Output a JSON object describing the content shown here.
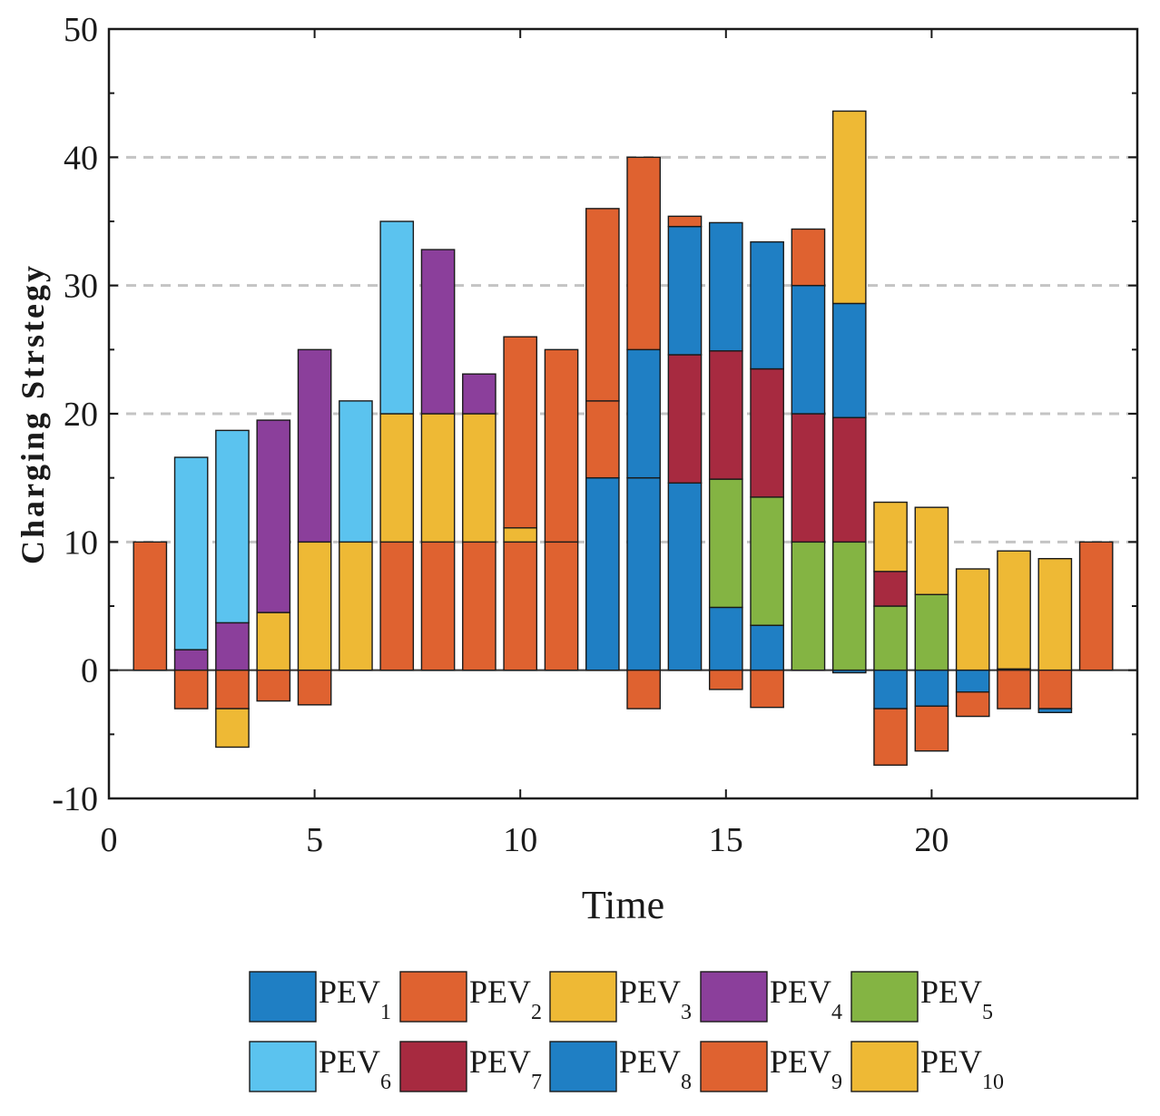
{
  "chart_data": {
    "type": "bar",
    "stacked": true,
    "xlabel": "Time",
    "ylabel": "Charging Strstegy",
    "xlim": [
      0,
      25
    ],
    "ylim": [
      -10,
      50
    ],
    "xticks": [
      0,
      5,
      10,
      15,
      20
    ],
    "yticks": [
      -10,
      0,
      10,
      20,
      30,
      40,
      50
    ],
    "ygrid_dashed": [
      10,
      20,
      30,
      40
    ],
    "legend_placement": "bottom",
    "series": [
      {
        "name": "PEV",
        "sub": "1",
        "color": "#1f7fc4"
      },
      {
        "name": "PEV",
        "sub": "2",
        "color": "#df6230"
      },
      {
        "name": "PEV",
        "sub": "3",
        "color": "#eeb935"
      },
      {
        "name": "PEV",
        "sub": "4",
        "color": "#8b3f9b"
      },
      {
        "name": "PEV",
        "sub": "5",
        "color": "#84b443"
      },
      {
        "name": "PEV",
        "sub": "6",
        "color": "#5bc3ef"
      },
      {
        "name": "PEV",
        "sub": "7",
        "color": "#a72a40"
      },
      {
        "name": "PEV",
        "sub": "8",
        "color": "#1f7fc4"
      },
      {
        "name": "PEV",
        "sub": "9",
        "color": "#df6230"
      },
      {
        "name": "PEV",
        "sub": "10",
        "color": "#eeb935"
      }
    ],
    "bars": [
      {
        "x": 1,
        "pos": [
          [
            1,
            10
          ]
        ],
        "neg": []
      },
      {
        "x": 2,
        "pos": [
          [
            3,
            1.6
          ],
          [
            5,
            15
          ]
        ],
        "neg": [
          [
            1,
            3
          ]
        ]
      },
      {
        "x": 3,
        "pos": [
          [
            3,
            3.7
          ],
          [
            5,
            15
          ]
        ],
        "neg": [
          [
            1,
            3
          ],
          [
            2,
            3
          ]
        ]
      },
      {
        "x": 4,
        "pos": [
          [
            2,
            4.5
          ],
          [
            3,
            15
          ]
        ],
        "neg": [
          [
            1,
            2.4
          ]
        ]
      },
      {
        "x": 5,
        "pos": [
          [
            2,
            10
          ],
          [
            3,
            15
          ]
        ],
        "neg": [
          [
            1,
            2.7
          ]
        ]
      },
      {
        "x": 6,
        "pos": [
          [
            2,
            10
          ],
          [
            5,
            11
          ]
        ],
        "neg": []
      },
      {
        "x": 7,
        "pos": [
          [
            1,
            10
          ],
          [
            2,
            10
          ],
          [
            5,
            15
          ]
        ],
        "neg": []
      },
      {
        "x": 8,
        "pos": [
          [
            1,
            10
          ],
          [
            2,
            10
          ],
          [
            3,
            12.8
          ]
        ],
        "neg": []
      },
      {
        "x": 9,
        "pos": [
          [
            1,
            10
          ],
          [
            2,
            10
          ],
          [
            3,
            3.1
          ]
        ],
        "neg": []
      },
      {
        "x": 10,
        "pos": [
          [
            1,
            10
          ],
          [
            2,
            1.1
          ],
          [
            1,
            14.9
          ]
        ],
        "neg": []
      },
      {
        "x": 11,
        "pos": [
          [
            1,
            10
          ],
          [
            1,
            15
          ]
        ],
        "neg": []
      },
      {
        "x": 12,
        "pos": [
          [
            0,
            15
          ],
          [
            1,
            6
          ],
          [
            1,
            15
          ]
        ],
        "neg": []
      },
      {
        "x": 13,
        "pos": [
          [
            0,
            15
          ],
          [
            0,
            10
          ],
          [
            1,
            15
          ]
        ],
        "neg": [
          [
            1,
            3
          ]
        ]
      },
      {
        "x": 14,
        "pos": [
          [
            0,
            14.6
          ],
          [
            6,
            10
          ],
          [
            0,
            10
          ],
          [
            1,
            0.8
          ]
        ],
        "neg": []
      },
      {
        "x": 15,
        "pos": [
          [
            0,
            4.9
          ],
          [
            4,
            10
          ],
          [
            6,
            10
          ],
          [
            0,
            10
          ]
        ],
        "neg": [
          [
            1,
            1.5
          ]
        ]
      },
      {
        "x": 16,
        "pos": [
          [
            0,
            3.5
          ],
          [
            4,
            10
          ],
          [
            6,
            10
          ],
          [
            0,
            9.9
          ]
        ],
        "neg": [
          [
            1,
            2.9
          ]
        ]
      },
      {
        "x": 17,
        "pos": [
          [
            4,
            10
          ],
          [
            6,
            10
          ],
          [
            0,
            10
          ],
          [
            1,
            4.4
          ]
        ],
        "neg": []
      },
      {
        "x": 18,
        "pos": [
          [
            4,
            10
          ],
          [
            6,
            9.7
          ],
          [
            0,
            8.9
          ],
          [
            2,
            15
          ]
        ],
        "neg": [
          [
            0,
            0.2
          ]
        ]
      },
      {
        "x": 19,
        "pos": [
          [
            4,
            5
          ],
          [
            6,
            2.7
          ],
          [
            2,
            5.4
          ]
        ],
        "neg": [
          [
            0,
            3
          ],
          [
            1,
            4.4
          ]
        ]
      },
      {
        "x": 20,
        "pos": [
          [
            4,
            5.9
          ],
          [
            2,
            6.8
          ]
        ],
        "neg": [
          [
            0,
            2.8
          ],
          [
            1,
            3.5
          ]
        ]
      },
      {
        "x": 21,
        "pos": [
          [
            2,
            7.9
          ]
        ],
        "neg": [
          [
            0,
            1.7
          ],
          [
            1,
            1.9
          ]
        ]
      },
      {
        "x": 22,
        "pos": [
          [
            0,
            0.1
          ],
          [
            2,
            9.2
          ]
        ],
        "neg": [
          [
            1,
            3
          ]
        ]
      },
      {
        "x": 23,
        "pos": [
          [
            2,
            8.7
          ]
        ],
        "neg": [
          [
            1,
            3
          ],
          [
            0,
            0.3
          ]
        ]
      },
      {
        "x": 24,
        "pos": [
          [
            1,
            10
          ]
        ],
        "neg": []
      }
    ]
  }
}
